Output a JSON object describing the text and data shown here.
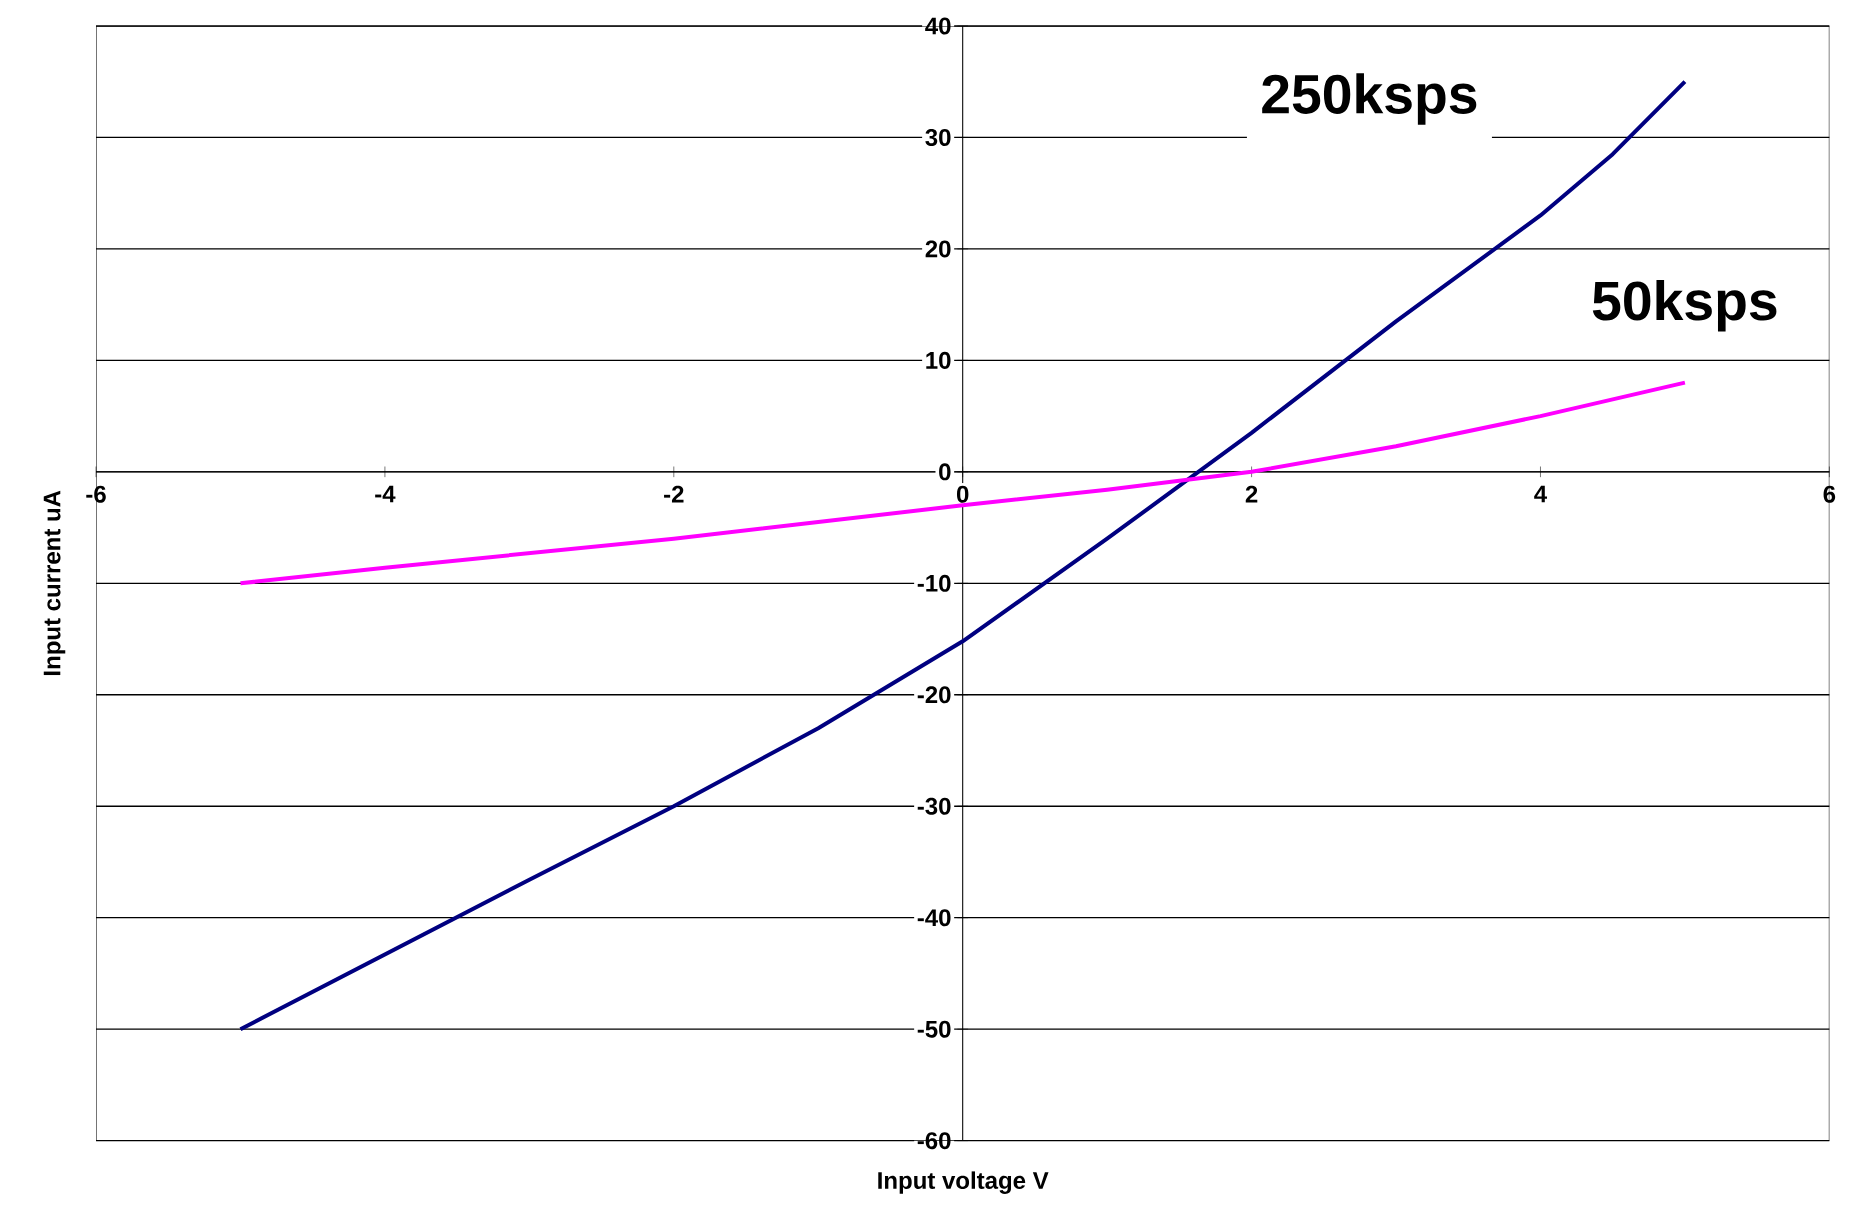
{
  "chart_data": {
    "type": "line",
    "xlabel": "Input voltage V",
    "ylabel": "Input current uA",
    "xlim": [
      -6,
      6
    ],
    "xticks": [
      -6,
      -4,
      -2,
      0,
      2,
      4,
      6
    ],
    "ylim": [
      -60,
      40
    ],
    "yticks": [
      -60,
      -50,
      -40,
      -30,
      -20,
      -10,
      0,
      10,
      20,
      30,
      40
    ],
    "grid": "y",
    "legend": false,
    "marker": "none",
    "line_style": "solid",
    "series": [
      {
        "name": "250ksps",
        "color": "#000080",
        "x": [
          -5,
          -4,
          -3,
          -2,
          -1,
          0,
          1,
          2,
          3,
          4,
          4.5,
          5
        ],
        "values": [
          -50,
          -43.3,
          -36.6,
          -30,
          -23,
          -15.2,
          -6,
          3.5,
          13.5,
          23,
          28.5,
          35
        ]
      },
      {
        "name": "50ksps",
        "color": "#ff00ff",
        "x": [
          -5,
          -4,
          -3,
          -2,
          -1,
          0,
          1,
          2,
          3,
          4,
          5
        ],
        "values": [
          -10,
          -8.6,
          -7.3,
          -6,
          -4.5,
          -3,
          -1.6,
          0,
          2.3,
          5,
          8
        ]
      }
    ]
  }
}
